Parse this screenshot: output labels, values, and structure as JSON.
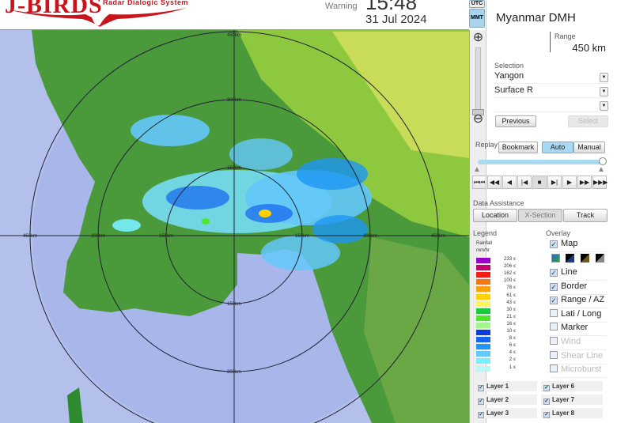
{
  "header": {
    "logo": "J-BIRDS",
    "logo_subtitle": "Radar Dialogic System",
    "warning_label": "Warning",
    "time": "15:48",
    "date": "31 Jul 2024",
    "tz_utc": "UTC",
    "tz_mmt": "MMT",
    "brand_color": "#c8141a"
  },
  "map": {
    "range_labels": {
      "r450": "450km",
      "r300": "300km",
      "r150": "150km"
    }
  },
  "panel": {
    "org": "Myanmar DMH",
    "range_label": "Range",
    "range_value": "450 km",
    "selection_label": "Selection",
    "selections": [
      "Yangon",
      "Surface R",
      ""
    ],
    "previous": "Previous",
    "select": "Select",
    "replay_label": "Replay",
    "bookmark": "Bookmark",
    "auto": "Auto",
    "manual": "Manual",
    "playback": [
      "⏮⏮",
      "◀◀",
      "◀",
      "|◀",
      "■",
      "▶|",
      "▶",
      "▶▶",
      "▶▶▶"
    ],
    "data_assist_label": "Data Assistance",
    "location": "Location",
    "xsection": "X-Section",
    "track": "Track",
    "legend_label": "Legend",
    "legend_title": "Rainfall",
    "legend_unit": "mm/hr",
    "legend": [
      {
        "v": "233 ≤",
        "c": "#9b00c8"
      },
      {
        "v": "206 ≤",
        "c": "#c8006e"
      },
      {
        "v": "162 ≤",
        "c": "#f01e14"
      },
      {
        "v": "100 ≤",
        "c": "#f57814"
      },
      {
        "v": "78 ≤",
        "c": "#faa00a"
      },
      {
        "v": "61 ≤",
        "c": "#ffd200"
      },
      {
        "v": "43 ≤",
        "c": "#fff55a"
      },
      {
        "v": "30 ≤",
        "c": "#1ec83c"
      },
      {
        "v": "21 ≤",
        "c": "#50e628"
      },
      {
        "v": "16 ≤",
        "c": "#a0f58c"
      },
      {
        "v": "10 ≤",
        "c": "#0a3cdc"
      },
      {
        "v": "8 ≤",
        "c": "#1464f0"
      },
      {
        "v": "6 ≤",
        "c": "#1e96f5"
      },
      {
        "v": "4 ≤",
        "c": "#64c8fa"
      },
      {
        "v": "2 ≤",
        "c": "#78f0ff"
      },
      {
        "v": "1 ≤",
        "c": "#b4fafa"
      }
    ],
    "overlay_label": "Overlay",
    "overlays": [
      {
        "label": "Map",
        "checked": true,
        "enabled": true
      },
      {
        "label": "Line",
        "checked": true,
        "enabled": true
      },
      {
        "label": "Border",
        "checked": true,
        "enabled": true
      },
      {
        "label": "Range / AZ",
        "checked": true,
        "enabled": true
      },
      {
        "label": "Lati / Long",
        "checked": false,
        "enabled": true
      },
      {
        "label": "Marker",
        "checked": false,
        "enabled": true
      },
      {
        "label": "Wind",
        "checked": false,
        "enabled": false
      },
      {
        "label": "Shear Line",
        "checked": false,
        "enabled": false
      },
      {
        "label": "Microburst",
        "checked": false,
        "enabled": false
      }
    ],
    "layers": [
      {
        "label": "Layer 1",
        "checked": true
      },
      {
        "label": "Layer 2",
        "checked": true
      },
      {
        "label": "Layer 3",
        "checked": true
      },
      {
        "label": "Layer 6",
        "checked": true
      },
      {
        "label": "Layer 7",
        "checked": true
      },
      {
        "label": "Layer 8",
        "checked": true
      }
    ]
  }
}
